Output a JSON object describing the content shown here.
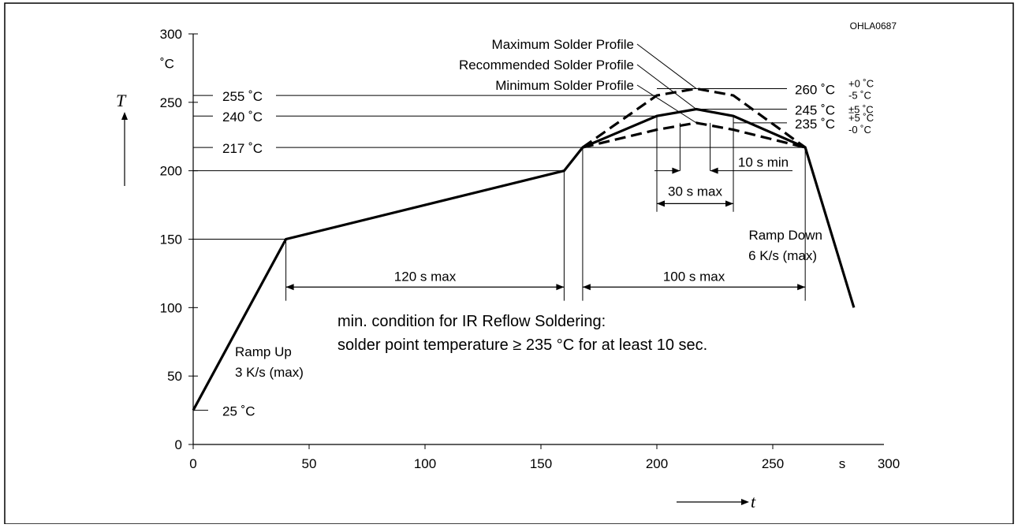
{
  "figure_id": "OHLA0687",
  "chart_data": {
    "type": "line",
    "title": "",
    "xlabel": "t",
    "ylabel": "T",
    "x_unit": "s",
    "y_unit": "˚C",
    "xlim": [
      0,
      300
    ],
    "ylim": [
      0,
      300
    ],
    "x_ticks": [
      0,
      50,
      100,
      150,
      200,
      250,
      300
    ],
    "y_ticks": [
      0,
      50,
      100,
      150,
      200,
      250,
      300
    ],
    "grid": false,
    "series": [
      {
        "name": "Recommended Solder Profile",
        "style": "solid",
        "x": [
          0,
          40,
          160,
          168,
          200,
          217,
          233,
          264,
          285
        ],
        "y": [
          25,
          150,
          200,
          217,
          240,
          245,
          240,
          217,
          100
        ]
      },
      {
        "name": "Maximum Solder Profile",
        "style": "dashed",
        "x": [
          168,
          200,
          217,
          233,
          264
        ],
        "y": [
          217,
          255,
          260,
          255,
          217
        ]
      },
      {
        "name": "Minimum Solder Profile",
        "style": "dashed",
        "x": [
          168,
          200,
          217,
          233,
          264
        ],
        "y": [
          217,
          230,
          235,
          230,
          217
        ]
      }
    ],
    "temperature_labels": [
      {
        "text": "255 ˚C",
        "y": 255
      },
      {
        "text": "240 ˚C",
        "y": 240
      },
      {
        "text": "217 ˚C",
        "y": 217
      },
      {
        "text": "25 ˚C",
        "y": 25
      }
    ],
    "profile_labels": [
      {
        "text": "Maximum Solder Profile",
        "target_x": 217,
        "target_y": 260
      },
      {
        "text": "Recommended Solder Profile",
        "target_x": 217,
        "target_y": 245
      },
      {
        "text": "Minimum Solder Profile",
        "target_x": 217,
        "target_y": 235
      }
    ],
    "peak_labels": [
      {
        "value": "260 ˚C",
        "tol_top": "+0 ˚C",
        "tol_bottom": "-5 ˚C",
        "y": 260
      },
      {
        "value": "245 ˚C",
        "tol_single": "±5 ˚C",
        "y": 245
      },
      {
        "value": "235 ˚C",
        "tol_top": "+5 ˚C",
        "tol_bottom": "-0 ˚C",
        "y": 235
      }
    ],
    "intervals": [
      {
        "text": "120 s max",
        "x1": 40,
        "x2": 160,
        "y": 115
      },
      {
        "text": "100 s max",
        "x1": 168,
        "x2": 264,
        "y": 115
      },
      {
        "text": "30 s max",
        "x1": 200,
        "x2": 233,
        "y": 176
      },
      {
        "text": "10 s min",
        "x1": 210,
        "x2": 223,
        "y": 200
      }
    ],
    "annotations": {
      "ramp_up": [
        "Ramp Up",
        "3 K/s (max)"
      ],
      "ramp_down": [
        "Ramp Down",
        "6 K/s (max)"
      ],
      "condition": [
        "min. condition for IR Reflow Soldering:",
        "solder point temperature ≥ 235 °C for at least 10 sec."
      ]
    }
  }
}
